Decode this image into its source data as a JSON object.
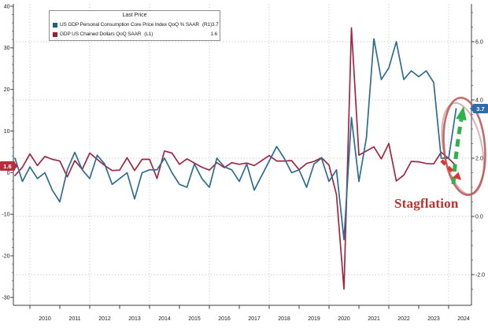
{
  "legend": {
    "title": "Last Price",
    "items": [
      {
        "label": "US GDP Personal Consumption Core Price Index QoQ % SAAR",
        "axis_tag": "(R1)",
        "value": "3.7",
        "swatch_color": "#1b6480"
      },
      {
        "label": "GDP US Chained Dollars QoQ SAAR",
        "axis_tag": "(L1)",
        "value": "1.6",
        "swatch_color": "#991f33"
      }
    ]
  },
  "badges": {
    "left": {
      "text": "1.6",
      "bg": "#b62e3e"
    },
    "right": {
      "text": "3.7",
      "bg": "#2e6ba8"
    }
  },
  "annotation": {
    "text": "Stagflation",
    "text_color": "#c1302a",
    "ellipse_color": "#b85252",
    "up_arrow_color": "#2eb34b",
    "down_arrow_color": "#e3312d"
  },
  "chart_data": {
    "type": "line",
    "title": "",
    "x_unit": "quarter",
    "grid": "dotted",
    "quarters": [
      "2009Q2",
      "2009Q3",
      "2009Q4",
      "2010Q1",
      "2010Q2",
      "2010Q3",
      "2010Q4",
      "2011Q1",
      "2011Q2",
      "2011Q3",
      "2011Q4",
      "2012Q1",
      "2012Q2",
      "2012Q3",
      "2012Q4",
      "2013Q1",
      "2013Q2",
      "2013Q3",
      "2013Q4",
      "2014Q1",
      "2014Q2",
      "2014Q3",
      "2014Q4",
      "2015Q1",
      "2015Q2",
      "2015Q3",
      "2015Q4",
      "2016Q1",
      "2016Q2",
      "2016Q3",
      "2016Q4",
      "2017Q1",
      "2017Q2",
      "2017Q3",
      "2017Q4",
      "2018Q1",
      "2018Q2",
      "2018Q3",
      "2018Q4",
      "2019Q1",
      "2019Q2",
      "2019Q3",
      "2019Q4",
      "2020Q1",
      "2020Q2",
      "2020Q3",
      "2020Q4",
      "2021Q1",
      "2021Q2",
      "2021Q3",
      "2021Q4",
      "2022Q1",
      "2022Q2",
      "2022Q3",
      "2022Q4",
      "2023Q1",
      "2023Q2",
      "2023Q3",
      "2023Q4",
      "2024Q1"
    ],
    "series": [
      {
        "name": "US GDP Personal Consumption Core Price Index QoQ % SAAR",
        "axis": "right",
        "color": "#2d6d90",
        "last_value": 3.7,
        "values": [
          2.0,
          1.2,
          1.7,
          1.3,
          1.5,
          0.9,
          0.5,
          1.6,
          2.2,
          1.6,
          1.3,
          2.1,
          1.8,
          1.1,
          1.3,
          1.5,
          0.6,
          1.5,
          1.6,
          1.6,
          2.0,
          1.5,
          1.1,
          1.0,
          1.8,
          1.3,
          1.0,
          2.0,
          1.7,
          1.6,
          1.2,
          1.8,
          0.9,
          1.4,
          1.9,
          2.4,
          2.0,
          1.5,
          1.6,
          1.0,
          1.8,
          2.0,
          1.2,
          1.6,
          -0.8,
          3.4,
          1.2,
          2.7,
          6.1,
          4.7,
          5.1,
          6.0,
          4.7,
          5.0,
          4.8,
          5.0,
          4.6,
          2.0,
          2.0,
          3.7
        ]
      },
      {
        "name": "GDP US Chained Dollars QoQ SAAR",
        "axis": "left",
        "color": "#9f2744",
        "last_value": 1.6,
        "values": [
          -0.7,
          1.3,
          4.5,
          1.7,
          3.9,
          3.2,
          2.8,
          -1.0,
          2.9,
          0.8,
          4.7,
          3.2,
          1.7,
          0.5,
          0.6,
          3.6,
          0.5,
          3.2,
          3.2,
          -1.4,
          5.2,
          4.7,
          2.0,
          3.3,
          2.3,
          1.3,
          0.6,
          2.4,
          1.2,
          2.4,
          2.0,
          2.3,
          1.7,
          2.9,
          4.1,
          2.8,
          2.8,
          2.9,
          0.7,
          2.2,
          2.7,
          3.6,
          1.8,
          -5.3,
          -28.0,
          34.8,
          4.2,
          5.2,
          6.2,
          3.3,
          7.0,
          -2.0,
          -0.6,
          2.7,
          2.6,
          2.2,
          2.1,
          4.9,
          3.4,
          1.6
        ]
      }
    ],
    "left_axis": {
      "ticks": [
        40,
        30,
        20,
        10,
        0,
        -10,
        -20,
        -30
      ],
      "range": [
        -31.9,
        40.56
      ],
      "minor_step": 2
    },
    "right_axis": {
      "ticks": [
        6.0,
        4.0,
        2.0,
        0.0,
        -2.0
      ],
      "range": [
        -3.054,
        7.297
      ],
      "minor_step": 0.5
    },
    "x_axis": {
      "year_labels": [
        "2010",
        "2011",
        "2012",
        "2013",
        "2014",
        "2015",
        "2016",
        "2017",
        "2018",
        "2019",
        "2020",
        "2021",
        "2022",
        "2023",
        "2024"
      ],
      "gridline_years": [
        2010,
        2012,
        2014,
        2016,
        2018,
        2020,
        2022,
        2024
      ]
    }
  }
}
